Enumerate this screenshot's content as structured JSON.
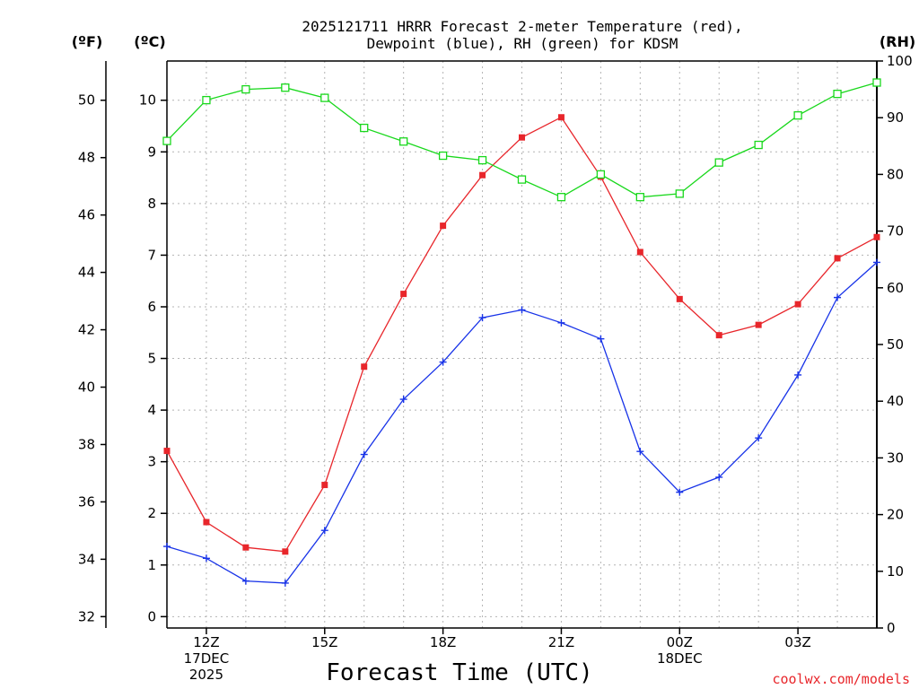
{
  "chart_data": {
    "type": "line",
    "title_line1": "2025121711 HRRR Forecast 2-meter Temperature (red),",
    "title_line2": "Dewpoint (blue), RH (green) for KDSM",
    "xlabel": "Forecast Time (UTC)",
    "credit": "coolwx.com/models",
    "units": {
      "fahrenheit": "(ºF)",
      "celsius": "(ºC)",
      "rh": "(RH)"
    },
    "x_hours": [
      0,
      1,
      2,
      3,
      4,
      5,
      6,
      7,
      8,
      9,
      10,
      11,
      12,
      13,
      14,
      15,
      16,
      17,
      18
    ],
    "x_ticks": [
      {
        "hour": 1,
        "lines": [
          "12Z",
          "17DEC",
          "2025"
        ]
      },
      {
        "hour": 4,
        "lines": [
          "15Z"
        ]
      },
      {
        "hour": 7,
        "lines": [
          "18Z"
        ]
      },
      {
        "hour": 10,
        "lines": [
          "21Z"
        ]
      },
      {
        "hour": 13,
        "lines": [
          "00Z",
          "18DEC"
        ]
      },
      {
        "hour": 16,
        "lines": [
          "03Z"
        ]
      }
    ],
    "celsius_axis": {
      "min": -0.22,
      "max": 10.76,
      "ticks": [
        0,
        1,
        2,
        3,
        4,
        5,
        6,
        7,
        8,
        9,
        10
      ]
    },
    "fahrenheit_axis": {
      "ticks": [
        32,
        34,
        36,
        38,
        40,
        42,
        44,
        46,
        48,
        50
      ]
    },
    "rh_axis": {
      "min": 0,
      "max": 100,
      "ticks": [
        0,
        10,
        20,
        30,
        40,
        50,
        60,
        70,
        80,
        90,
        100
      ]
    },
    "series": [
      {
        "name": "2-meter Temperature",
        "color": "#e8262b",
        "marker": "filled-square",
        "axis": "celsius",
        "values": [
          3.21,
          1.83,
          1.34,
          1.26,
          2.55,
          4.84,
          6.25,
          7.57,
          8.55,
          9.28,
          9.67,
          8.52,
          7.06,
          6.15,
          5.45,
          5.65,
          6.05,
          6.94,
          7.35
        ]
      },
      {
        "name": "Dewpoint",
        "color": "#1833e8",
        "marker": "plus",
        "axis": "celsius",
        "values": [
          1.36,
          1.13,
          0.69,
          0.65,
          1.67,
          3.14,
          4.21,
          4.93,
          5.79,
          5.94,
          5.69,
          5.38,
          3.2,
          2.41,
          2.7,
          3.46,
          4.68,
          6.18,
          6.86
        ]
      },
      {
        "name": "Relative Humidity",
        "color": "#19d81c",
        "marker": "open-square",
        "axis": "rh",
        "values": [
          85.9,
          93.1,
          95.0,
          95.3,
          93.5,
          88.2,
          85.8,
          83.3,
          82.5,
          79.1,
          76.0,
          80.0,
          76.0,
          76.6,
          82.1,
          85.2,
          90.4,
          94.2,
          96.2
        ]
      }
    ]
  }
}
